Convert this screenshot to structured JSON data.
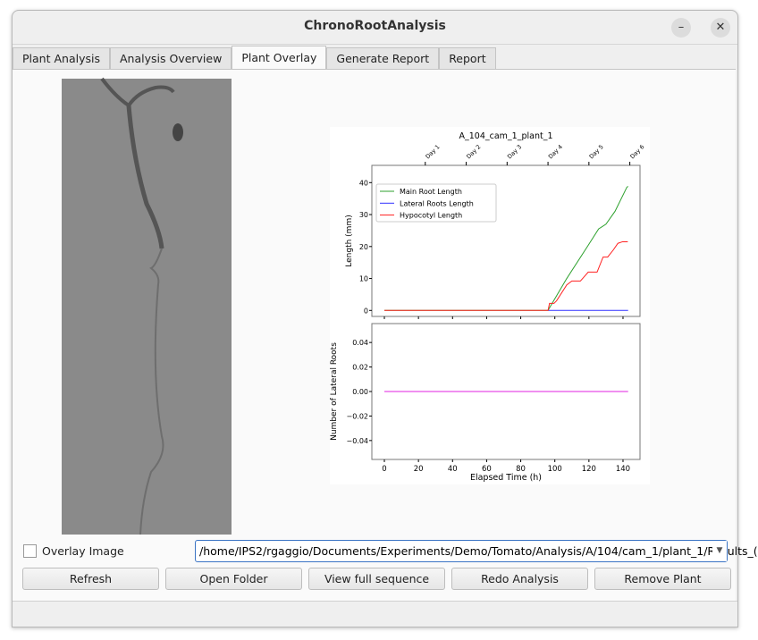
{
  "window": {
    "title": "ChronoRootAnalysis",
    "minimize_icon": "minimize-icon",
    "close_icon": "close-icon"
  },
  "tabs": [
    {
      "label": "Plant Analysis"
    },
    {
      "label": "Analysis Overview"
    },
    {
      "label": "Plant Overlay",
      "active": true
    },
    {
      "label": "Generate Report"
    },
    {
      "label": "Report"
    }
  ],
  "overlay": {
    "label": "Overlay Image",
    "checked": false
  },
  "path_select": {
    "value": "/home/IPS2/rgaggio/Documents/Experiments/Demo/Tomato/Analysis/A/104/cam_1/plant_1/Results_("
  },
  "buttons": {
    "refresh": "Refresh",
    "open_folder": "Open Folder",
    "view_sequence": "View full sequence",
    "redo": "Redo Analysis",
    "remove": "Remove Plant"
  },
  "chart_data": [
    {
      "type": "line",
      "title": "A_104_cam_1_plant_1",
      "ylabel": "Length (mm)",
      "xlabel": "",
      "ylim": [
        -2,
        41
      ],
      "xlim": [
        -7,
        150
      ],
      "yticks": [
        "0",
        "10",
        "20",
        "30",
        "40"
      ],
      "top_axis_ticks": [
        {
          "label": "Day 1",
          "x": 24
        },
        {
          "label": "Day 2",
          "x": 48
        },
        {
          "label": "Day 3",
          "x": 72
        },
        {
          "label": "Day 4",
          "x": 96
        },
        {
          "label": "Day 5",
          "x": 120
        },
        {
          "label": "Day 6",
          "x": 144
        }
      ],
      "legend": "top-left",
      "series": [
        {
          "name": "Main Root Length",
          "color": "#2ca02c",
          "points": [
            [
              0,
              0
            ],
            [
              96,
              0
            ],
            [
              107,
              10
            ],
            [
              119.6,
              20.4
            ],
            [
              125.7,
              25.5
            ],
            [
              130,
              27
            ],
            [
              135.3,
              31
            ],
            [
              142.3,
              38.6
            ],
            [
              143,
              38.8
            ]
          ]
        },
        {
          "name": "Lateral Roots Length",
          "color": "#3030ff",
          "points": [
            [
              96,
              0
            ],
            [
              143,
              0
            ]
          ]
        },
        {
          "name": "Hypocotyl Length",
          "color": "#ff2020",
          "points": [
            [
              0,
              0
            ],
            [
              96,
              0
            ],
            [
              96.9,
              2.2
            ],
            [
              99.5,
              2.2
            ],
            [
              101,
              3
            ],
            [
              107,
              8
            ],
            [
              110,
              9.2
            ],
            [
              115,
              9.2
            ],
            [
              119.6,
              12
            ],
            [
              124.8,
              12
            ],
            [
              128.3,
              16.7
            ],
            [
              131,
              16.7
            ],
            [
              134.4,
              19
            ],
            [
              137,
              21
            ],
            [
              139.7,
              21.5
            ],
            [
              142.8,
              21.5
            ]
          ]
        }
      ]
    },
    {
      "type": "line",
      "ylabel": "Number of Lateral Roots",
      "xlabel": "Elapsed Time (h)",
      "ylim": [
        -0.055,
        0.055
      ],
      "xlim": [
        -7,
        150
      ],
      "xticks": [
        "0",
        "20",
        "40",
        "60",
        "80",
        "100",
        "120",
        "140"
      ],
      "yticks": [
        "0.04",
        "0.02",
        "0.00",
        "−0.02",
        "−0.04"
      ],
      "series": [
        {
          "color": "#e020e0",
          "points": [
            [
              0,
              0
            ],
            [
              143,
              0
            ]
          ]
        }
      ]
    }
  ]
}
